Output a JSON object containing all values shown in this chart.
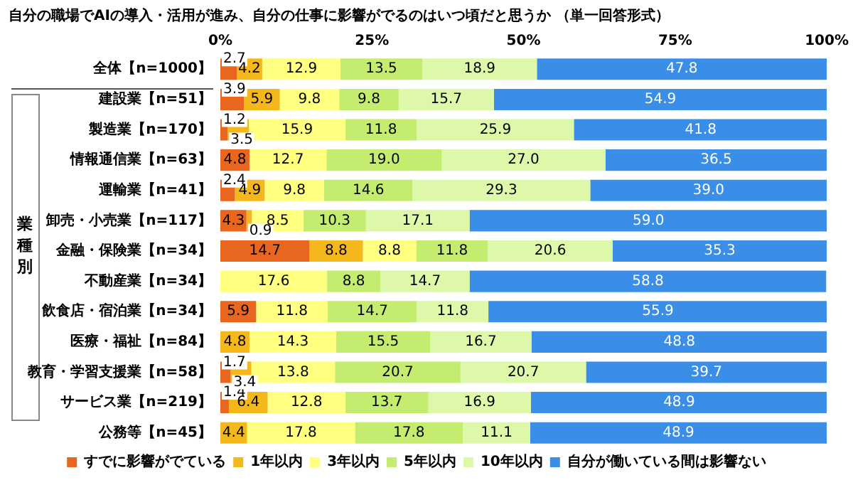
{
  "chart_data": {
    "type": "bar",
    "orientation": "horizontal",
    "stacked": true,
    "title": "自分の職場でAIの導入・活用が進み、自分の仕事に影響がでるのはいつ頃だと思うか （単一回答形式）",
    "annotations": [
      "業種別"
    ],
    "categories": [
      "全体【n=1000】",
      "建設業【n=51】",
      "製造業【n=170】",
      "情報通信業【n=63】",
      "運輸業【n=41】",
      "卸売・小売業【n=117】",
      "金融・保険業【n=34】",
      "不動産業【n=34】",
      "飲食店・宿泊業【n=34】",
      "医療・福祉【n=84】",
      "教育・学習支援業【n=58】",
      "サービス業【n=219】",
      "公務等【n=45】"
    ],
    "series": [
      {
        "name": "すでに影響がでている",
        "color": "#e8661e",
        "values": [
          2.7,
          3.9,
          1.2,
          4.8,
          2.4,
          4.3,
          14.7,
          null,
          5.9,
          null,
          1.7,
          1.4,
          null
        ],
        "value_labels": [
          "2.7",
          "3.9",
          "1.2",
          "4.8",
          "2.4",
          "4.3",
          "14.7",
          null,
          "5.9",
          null,
          "1.7",
          "1.4",
          null
        ]
      },
      {
        "name": "1年以内",
        "color": "#f5b81c",
        "values": [
          4.2,
          5.9,
          3.5,
          null,
          4.9,
          0.9,
          8.8,
          null,
          null,
          4.8,
          3.4,
          6.4,
          4.4
        ],
        "value_labels": [
          "4.2",
          "5.9",
          "3.5",
          null,
          "4.9",
          "0.9",
          "8.8",
          null,
          null,
          "4.8",
          "3.4",
          "6.4",
          "4.4"
        ]
      },
      {
        "name": "3年以内",
        "color": "#ffff80",
        "values": [
          12.9,
          9.8,
          15.9,
          12.7,
          9.8,
          8.5,
          8.8,
          17.6,
          11.8,
          14.3,
          13.8,
          12.8,
          17.8
        ],
        "value_labels": [
          "12.9",
          "9.8",
          "15.9",
          "12.7",
          "9.8",
          "8.5",
          "8.8",
          "17.6",
          "11.8",
          "14.3",
          "13.8",
          "12.8",
          "17.8"
        ]
      },
      {
        "name": "5年以内",
        "color": "#c4ec6e",
        "values": [
          13.5,
          9.8,
          11.8,
          19.0,
          14.6,
          10.3,
          11.8,
          8.8,
          14.7,
          15.5,
          20.7,
          13.7,
          17.8
        ],
        "value_labels": [
          "13.5",
          "9.8",
          "11.8",
          "19.0",
          "14.6",
          "10.3",
          "11.8",
          "8.8",
          "14.7",
          "15.5",
          "20.7",
          "13.7",
          "17.8"
        ]
      },
      {
        "name": "10年以内",
        "color": "#dcf8a8",
        "values": [
          18.9,
          15.7,
          25.9,
          27.0,
          29.3,
          17.1,
          20.6,
          14.7,
          11.8,
          16.7,
          20.7,
          16.9,
          11.1
        ],
        "value_labels": [
          "18.9",
          "15.7",
          "25.9",
          "27.0",
          "29.3",
          "17.1",
          "20.6",
          "14.7",
          "11.8",
          "16.7",
          "20.7",
          "16.9",
          "11.1"
        ]
      },
      {
        "name": "自分が働いている間は影響ない",
        "color": "#3a8ee8",
        "values": [
          47.8,
          54.9,
          41.8,
          36.5,
          39.0,
          59.0,
          35.3,
          58.8,
          55.9,
          48.8,
          39.7,
          48.9,
          48.9
        ],
        "value_labels": [
          "47.8",
          "54.9",
          "41.8",
          "36.5",
          "39.0",
          "59.0",
          "35.3",
          "58.8",
          "55.9",
          "48.8",
          "39.7",
          "48.9",
          "48.9"
        ]
      }
    ],
    "xlim": [
      0,
      100
    ],
    "xticks": [
      {
        "value": 0,
        "label": "0%"
      },
      {
        "value": 25,
        "label": "25%"
      },
      {
        "value": 50,
        "label": "50%"
      },
      {
        "value": 75,
        "label": "75%"
      },
      {
        "value": 100,
        "label": "100%"
      }
    ],
    "legend": "bottom"
  }
}
